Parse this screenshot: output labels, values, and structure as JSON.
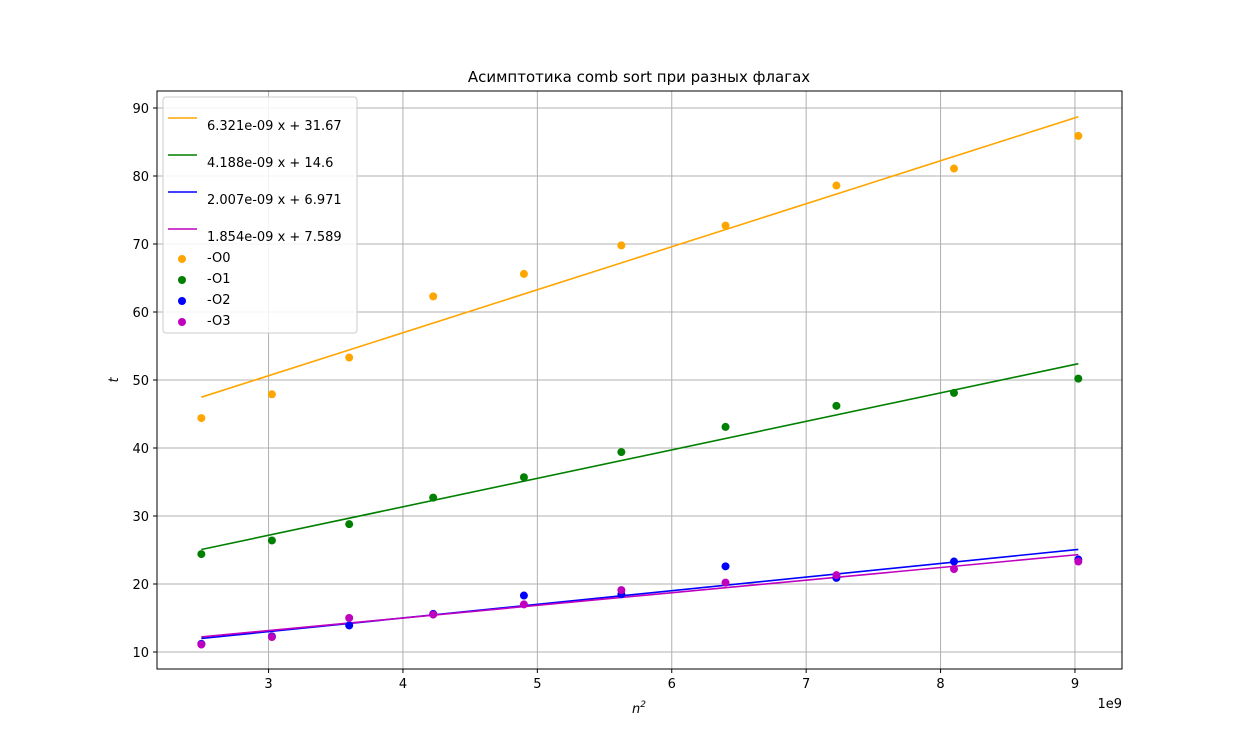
{
  "chart_data": {
    "type": "scatter",
    "title": "Асимптотика comb sort при разных флагах",
    "xlabel": "n",
    "xlabel_superscript": "2",
    "ylabel": "t",
    "x_offset_label": "1e9",
    "x_scale": 1000000000,
    "xlim": [
      2170000000,
      9350000000
    ],
    "ylim": [
      7.5,
      92.5
    ],
    "xticks": [
      3000000000,
      4000000000,
      5000000000,
      6000000000,
      7000000000,
      8000000000,
      9000000000
    ],
    "xtick_labels": [
      "3",
      "4",
      "5",
      "6",
      "7",
      "8",
      "9"
    ],
    "yticks": [
      10,
      20,
      30,
      40,
      50,
      60,
      70,
      80,
      90
    ],
    "ytick_labels": [
      "10",
      "20",
      "30",
      "40",
      "50",
      "60",
      "70",
      "80",
      "90"
    ],
    "grid": true,
    "legend_position": "upper-left",
    "x": [
      2500000000,
      3025000000,
      3600000000,
      4225000000,
      4900000000,
      5625000000,
      6400000000,
      7225000000,
      8100000000,
      9025000000
    ],
    "series": [
      {
        "name": "-O0",
        "color": "#ffa500",
        "values": [
          44.4,
          47.9,
          53.3,
          62.3,
          65.6,
          69.8,
          72.7,
          78.6,
          81.1,
          85.9
        ]
      },
      {
        "name": "-O1",
        "color": "#008000",
        "values": [
          24.4,
          26.4,
          28.8,
          32.7,
          35.7,
          39.4,
          43.1,
          46.2,
          48.1,
          50.2
        ]
      },
      {
        "name": "-O2",
        "color": "#0000ff",
        "values": [
          11.2,
          12.3,
          13.9,
          15.6,
          18.3,
          18.5,
          22.6,
          20.9,
          23.3,
          23.6
        ]
      },
      {
        "name": "-O3",
        "color": "#bf00bf",
        "values": [
          11.1,
          12.2,
          15.0,
          15.5,
          17.0,
          19.1,
          20.2,
          21.3,
          22.2,
          23.3
        ]
      }
    ],
    "fits": [
      {
        "label": "6.321e-09 x + 31.67",
        "color": "#ffa500",
        "slope": 6.321e-09,
        "intercept": 31.67
      },
      {
        "label": "4.188e-09 x + 14.6",
        "color": "#008000",
        "slope": 4.188e-09,
        "intercept": 14.6
      },
      {
        "label": "2.007e-09 x + 6.971",
        "color": "#0000ff",
        "slope": 2.007e-09,
        "intercept": 6.971
      },
      {
        "label": "1.854e-09 x + 7.589",
        "color": "#bf00bf",
        "slope": 1.854e-09,
        "intercept": 7.589
      }
    ]
  }
}
